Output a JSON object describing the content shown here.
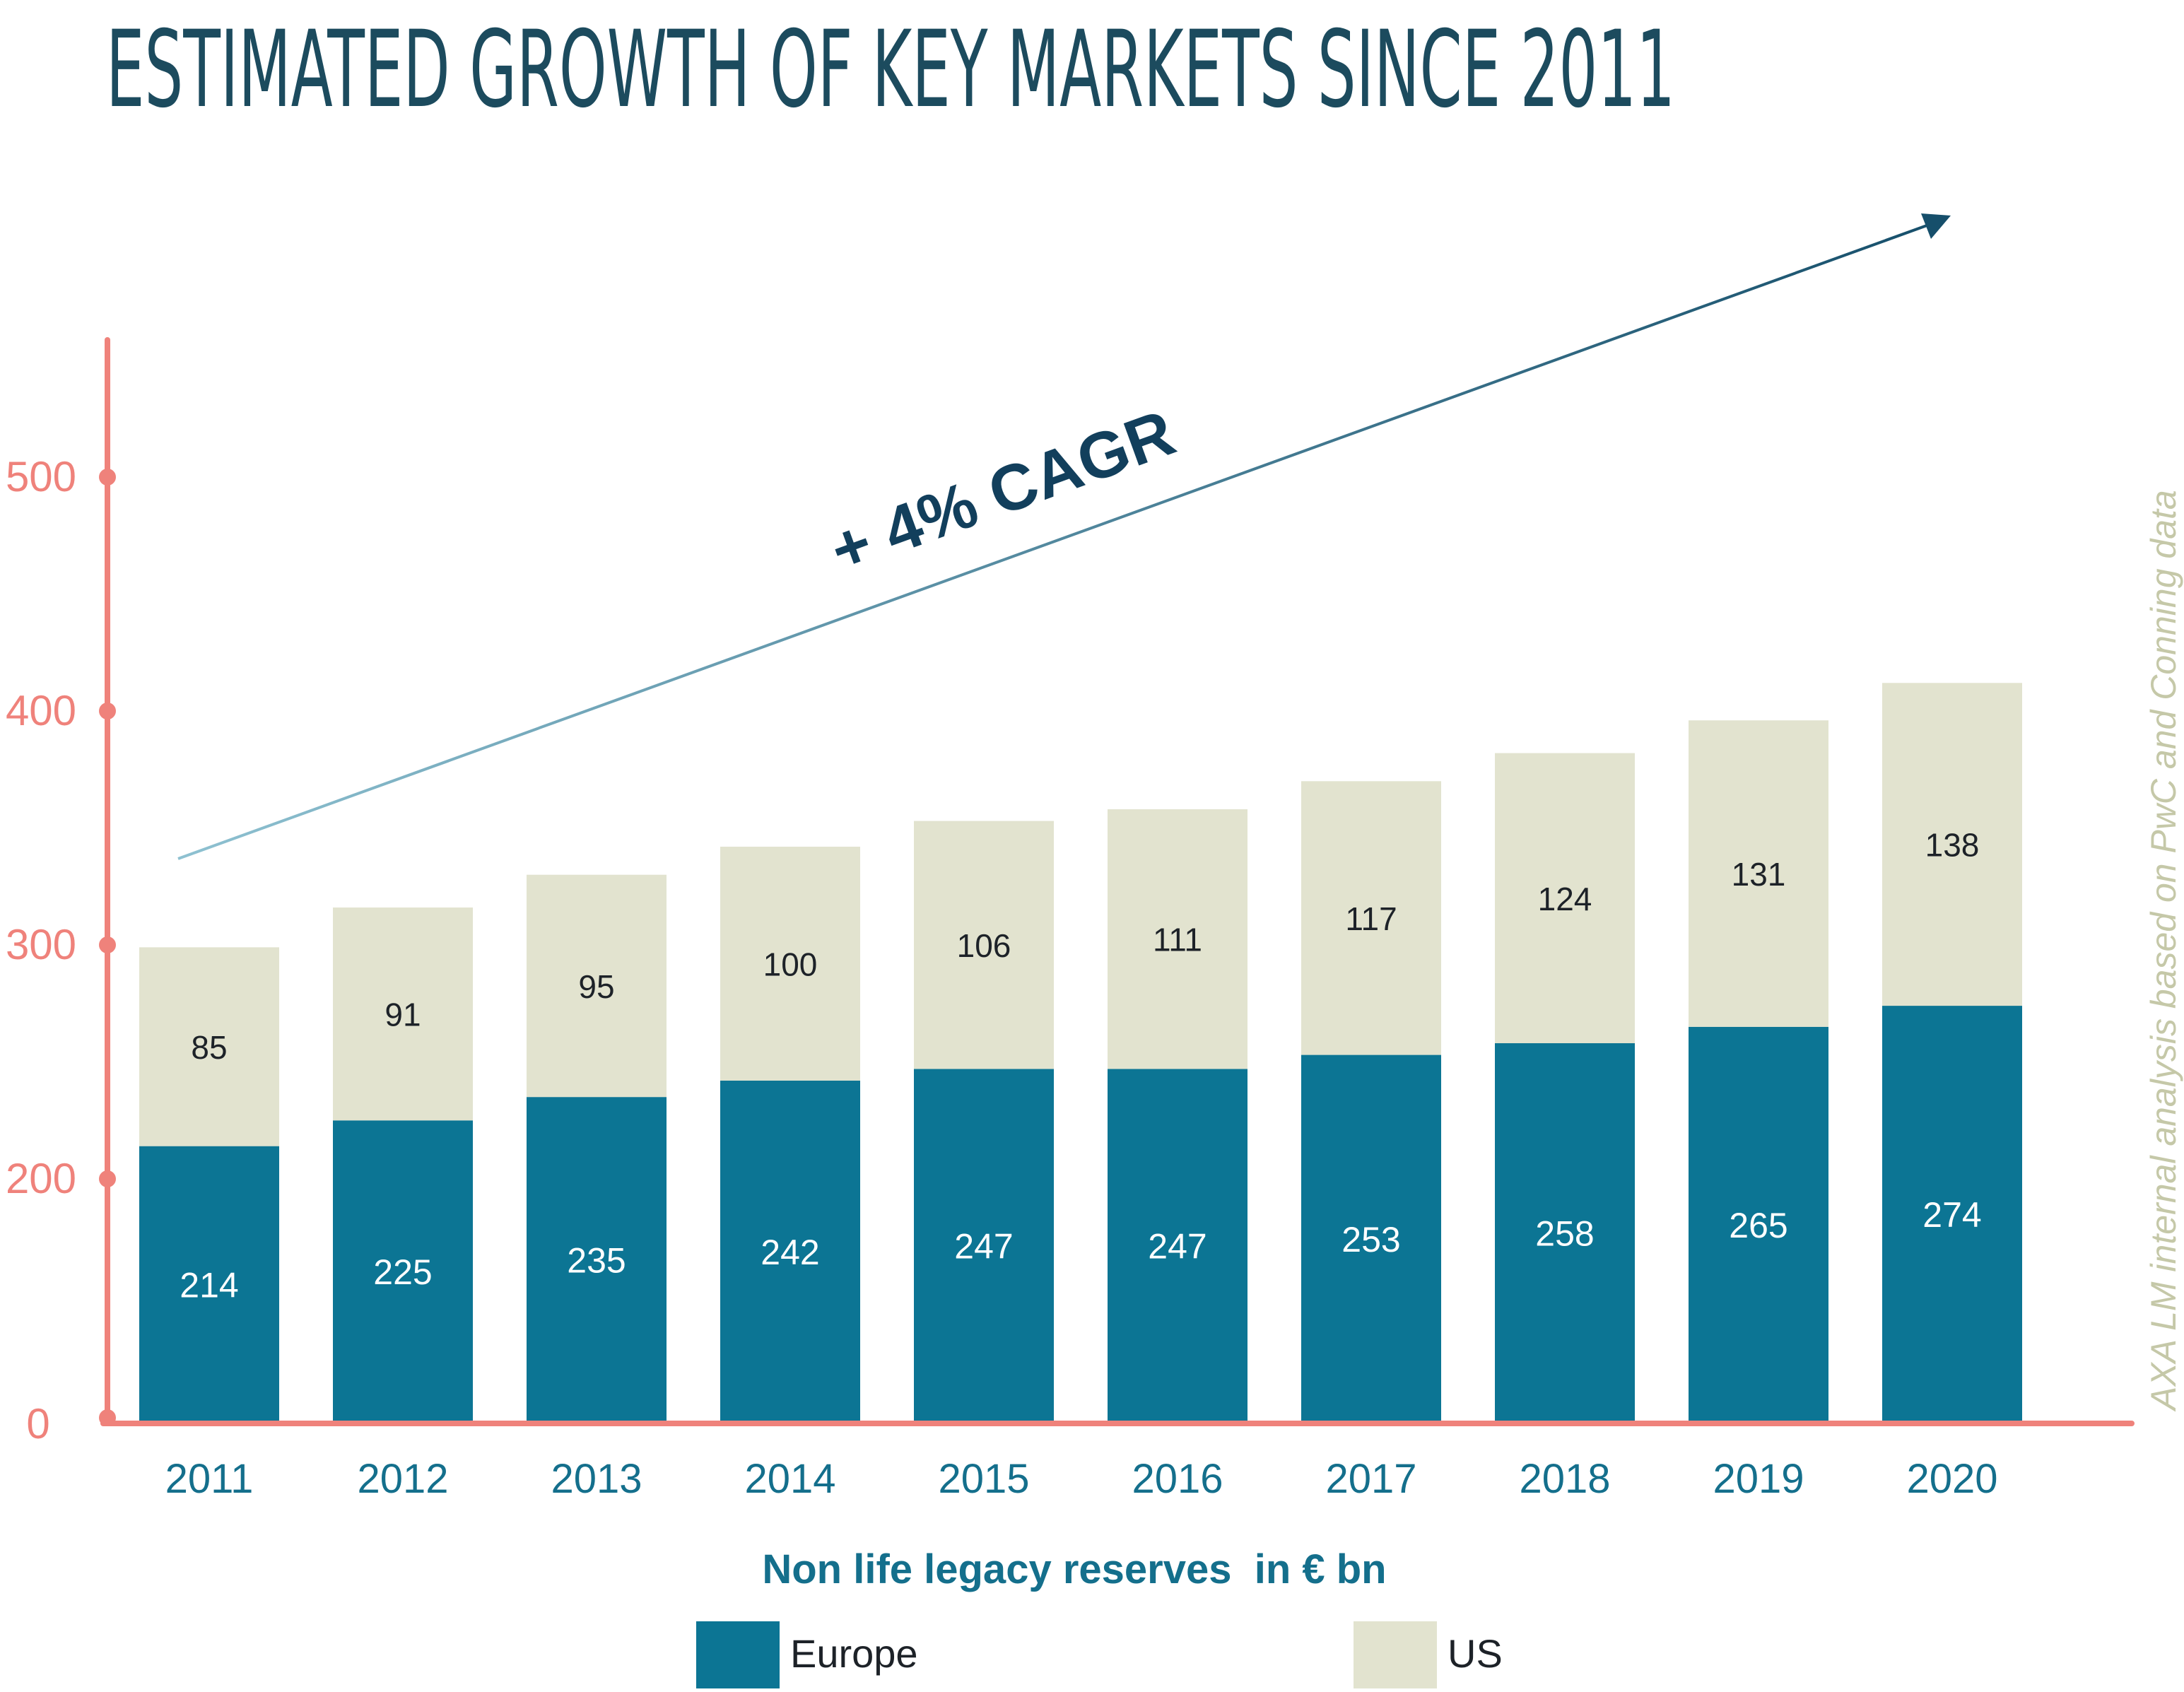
{
  "chart_data": {
    "type": "bar",
    "stacked": true,
    "title": "ESTIMATED GROWTH OF KEY MARKETS SINCE 2011",
    "xlabel": "Non life legacy reserves  in € bn",
    "ylabel": "",
    "source_note": "AXA LM internal analysis based on PwC and Conning data",
    "annotation": "+ 4% CAGR",
    "categories": [
      "2011",
      "2012",
      "2013",
      "2014",
      "2015",
      "2016",
      "2017",
      "2018",
      "2019",
      "2020"
    ],
    "series": [
      {
        "name": "Europe",
        "color": "#0c7594",
        "label_color": "#ffffff",
        "values": [
          214,
          225,
          235,
          242,
          247,
          247,
          253,
          258,
          265,
          274
        ]
      },
      {
        "name": "US",
        "color": "#e2e3cf",
        "label_color": "#1d2228",
        "values": [
          85,
          91,
          95,
          100,
          106,
          111,
          117,
          124,
          131,
          138
        ]
      }
    ],
    "yticks": [
      0,
      200,
      300,
      400,
      500
    ],
    "ylim": [
      0,
      560
    ],
    "grid": false,
    "legend": "bottom",
    "colors": {
      "title": "#1c4b5e",
      "axis": "#ef827b",
      "axis_labels": "#ef827b",
      "category_labels": "#146f8c",
      "xlabel": "#146f8c",
      "annotation": "#123f5c",
      "arrow": "#1b5570",
      "source_note": "#c5c8a8"
    }
  }
}
